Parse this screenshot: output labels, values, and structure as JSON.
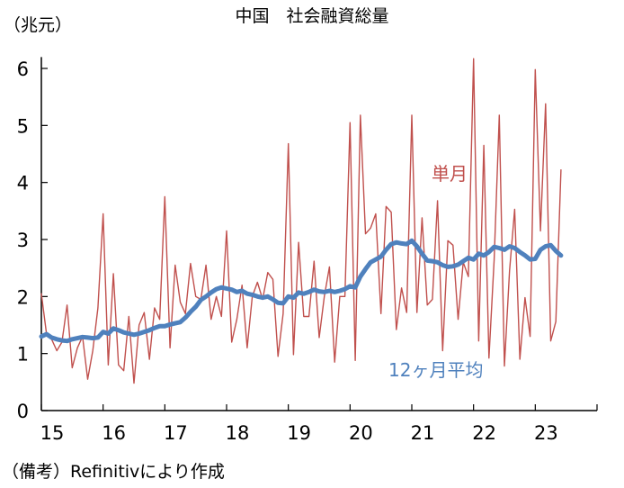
{
  "chart_data": {
    "type": "line",
    "title": "中国　社会融資総量",
    "ylabel": "（兆元）",
    "note": "（備考）Refinitivにより作成",
    "ylim": [
      0,
      6.2
    ],
    "yticks": [
      0,
      1,
      2,
      3,
      4,
      5,
      6
    ],
    "xlim": [
      2015,
      2024
    ],
    "xticks": [
      2015,
      2016,
      2017,
      2018,
      2019,
      2020,
      2021,
      2022,
      2023,
      2024
    ],
    "xtick_labels": [
      "15",
      "16",
      "17",
      "18",
      "19",
      "20",
      "21",
      "22",
      "23"
    ],
    "grid": false,
    "series": [
      {
        "name": "単月",
        "color": "#c0504d",
        "x_start": 2015.0,
        "x_step_months": 1,
        "values": [
          2.05,
          1.35,
          1.25,
          1.05,
          1.2,
          1.85,
          0.75,
          1.1,
          1.3,
          0.55,
          1.05,
          1.8,
          3.45,
          0.8,
          2.4,
          0.8,
          0.7,
          1.65,
          0.48,
          1.5,
          1.72,
          0.9,
          1.8,
          1.6,
          3.75,
          1.1,
          2.55,
          1.9,
          1.7,
          2.58,
          2.0,
          1.95,
          2.55,
          1.6,
          2.0,
          1.65,
          3.15,
          1.2,
          1.6,
          2.2,
          1.1,
          2.0,
          2.25,
          1.95,
          2.42,
          2.3,
          0.95,
          1.7,
          4.68,
          0.98,
          2.95,
          1.65,
          1.65,
          2.62,
          1.28,
          2.0,
          2.52,
          0.85,
          2.0,
          2.0,
          5.05,
          0.88,
          5.18,
          3.1,
          3.2,
          3.45,
          1.7,
          3.58,
          3.48,
          1.42,
          2.15,
          1.72,
          5.18,
          1.72,
          3.38,
          1.85,
          1.95,
          3.68,
          1.05,
          2.98,
          2.9,
          1.6,
          2.6,
          2.35,
          6.17,
          1.22,
          4.65,
          0.92,
          2.65,
          5.18,
          0.78,
          2.45,
          3.53,
          0.9,
          1.98,
          1.3,
          5.98,
          3.15,
          5.38,
          1.22,
          1.56,
          4.22
        ]
      },
      {
        "name": "12ヶ月平均",
        "color": "#4f81bd",
        "x_start": 2015.0,
        "x_step_months": 1,
        "values": [
          1.3,
          1.34,
          1.28,
          1.25,
          1.23,
          1.22,
          1.25,
          1.27,
          1.29,
          1.28,
          1.27,
          1.28,
          1.38,
          1.35,
          1.44,
          1.41,
          1.37,
          1.35,
          1.33,
          1.35,
          1.38,
          1.41,
          1.45,
          1.48,
          1.48,
          1.51,
          1.53,
          1.55,
          1.63,
          1.73,
          1.82,
          1.94,
          2.0,
          2.07,
          2.13,
          2.16,
          2.14,
          2.12,
          2.08,
          2.1,
          2.05,
          2.03,
          2.0,
          1.98,
          2.0,
          1.95,
          1.89,
          1.88,
          2.0,
          1.98,
          2.07,
          2.05,
          2.08,
          2.12,
          2.09,
          2.08,
          2.1,
          2.08,
          2.1,
          2.13,
          2.18,
          2.16,
          2.35,
          2.48,
          2.6,
          2.65,
          2.7,
          2.82,
          2.92,
          2.95,
          2.93,
          2.92,
          2.98,
          2.88,
          2.75,
          2.63,
          2.62,
          2.6,
          2.55,
          2.52,
          2.53,
          2.56,
          2.62,
          2.68,
          2.65,
          2.75,
          2.72,
          2.78,
          2.87,
          2.85,
          2.82,
          2.88,
          2.85,
          2.78,
          2.72,
          2.65,
          2.66,
          2.82,
          2.88,
          2.9,
          2.8,
          2.72
        ]
      }
    ],
    "series_labels": [
      {
        "text": "単月",
        "color": "#c0504d"
      },
      {
        "text": "12ヶ月平均",
        "color": "#4f81bd"
      }
    ]
  }
}
